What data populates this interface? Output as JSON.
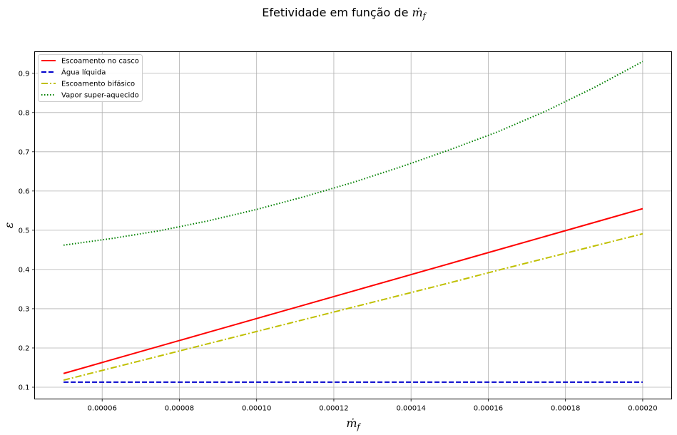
{
  "chart_data": {
    "type": "line",
    "title": "Efetividade em função de ṁ_f",
    "title_parts": {
      "text": "Efetividade em função de ",
      "math": "ṁ",
      "sub": "f"
    },
    "xlabel": "ṁ_f",
    "xlabel_parts": {
      "math": "ṁ",
      "sub": "f"
    },
    "ylabel": "ε",
    "xlim": [
      4.25e-05,
      0.0002075
    ],
    "ylim": [
      0.07,
      0.955
    ],
    "xticks": [
      6e-05,
      8e-05,
      0.0001,
      0.00012,
      0.00014,
      0.00016,
      0.00018,
      0.0002
    ],
    "xtick_labels": [
      "0.00006",
      "0.00008",
      "0.00010",
      "0.00012",
      "0.00014",
      "0.00016",
      "0.00018",
      "0.00020"
    ],
    "yticks": [
      0.1,
      0.2,
      0.3,
      0.4,
      0.5,
      0.6,
      0.7,
      0.8,
      0.9
    ],
    "ytick_labels": [
      "0.1",
      "0.2",
      "0.3",
      "0.4",
      "0.5",
      "0.6",
      "0.7",
      "0.8",
      "0.9"
    ],
    "grid": true,
    "legend_position": "top-left",
    "x": [
      5e-05,
      6.25e-05,
      7.5e-05,
      8.75e-05,
      0.0001,
      0.0001125,
      0.000125,
      0.0001375,
      0.00015,
      0.0001625,
      0.000175,
      0.0001875,
      0.0002
    ],
    "series": [
      {
        "name": "Escoamento no casco",
        "color": "#ff0000",
        "style": "solid",
        "values": [
          0.135,
          0.17,
          0.205,
          0.24,
          0.275,
          0.31,
          0.345,
          0.38,
          0.415,
          0.45,
          0.485,
          0.52,
          0.555
        ]
      },
      {
        "name": "Água líquida",
        "color": "#0000cc",
        "style": "dashed",
        "values": [
          0.113,
          0.113,
          0.113,
          0.113,
          0.113,
          0.113,
          0.113,
          0.113,
          0.113,
          0.113,
          0.113,
          0.113,
          0.113
        ]
      },
      {
        "name": "Escoamento bifásico",
        "color": "#bfbf00",
        "style": "dashdot",
        "values": [
          0.118,
          0.149,
          0.18,
          0.211,
          0.242,
          0.273,
          0.304,
          0.335,
          0.366,
          0.398,
          0.429,
          0.46,
          0.491
        ]
      },
      {
        "name": "Vapor super-aquecido",
        "color": "#008000",
        "style": "dotted",
        "values": [
          0.462,
          0.479,
          0.499,
          0.524,
          0.553,
          0.586,
          0.622,
          0.662,
          0.705,
          0.751,
          0.804,
          0.864,
          0.93
        ]
      }
    ]
  }
}
